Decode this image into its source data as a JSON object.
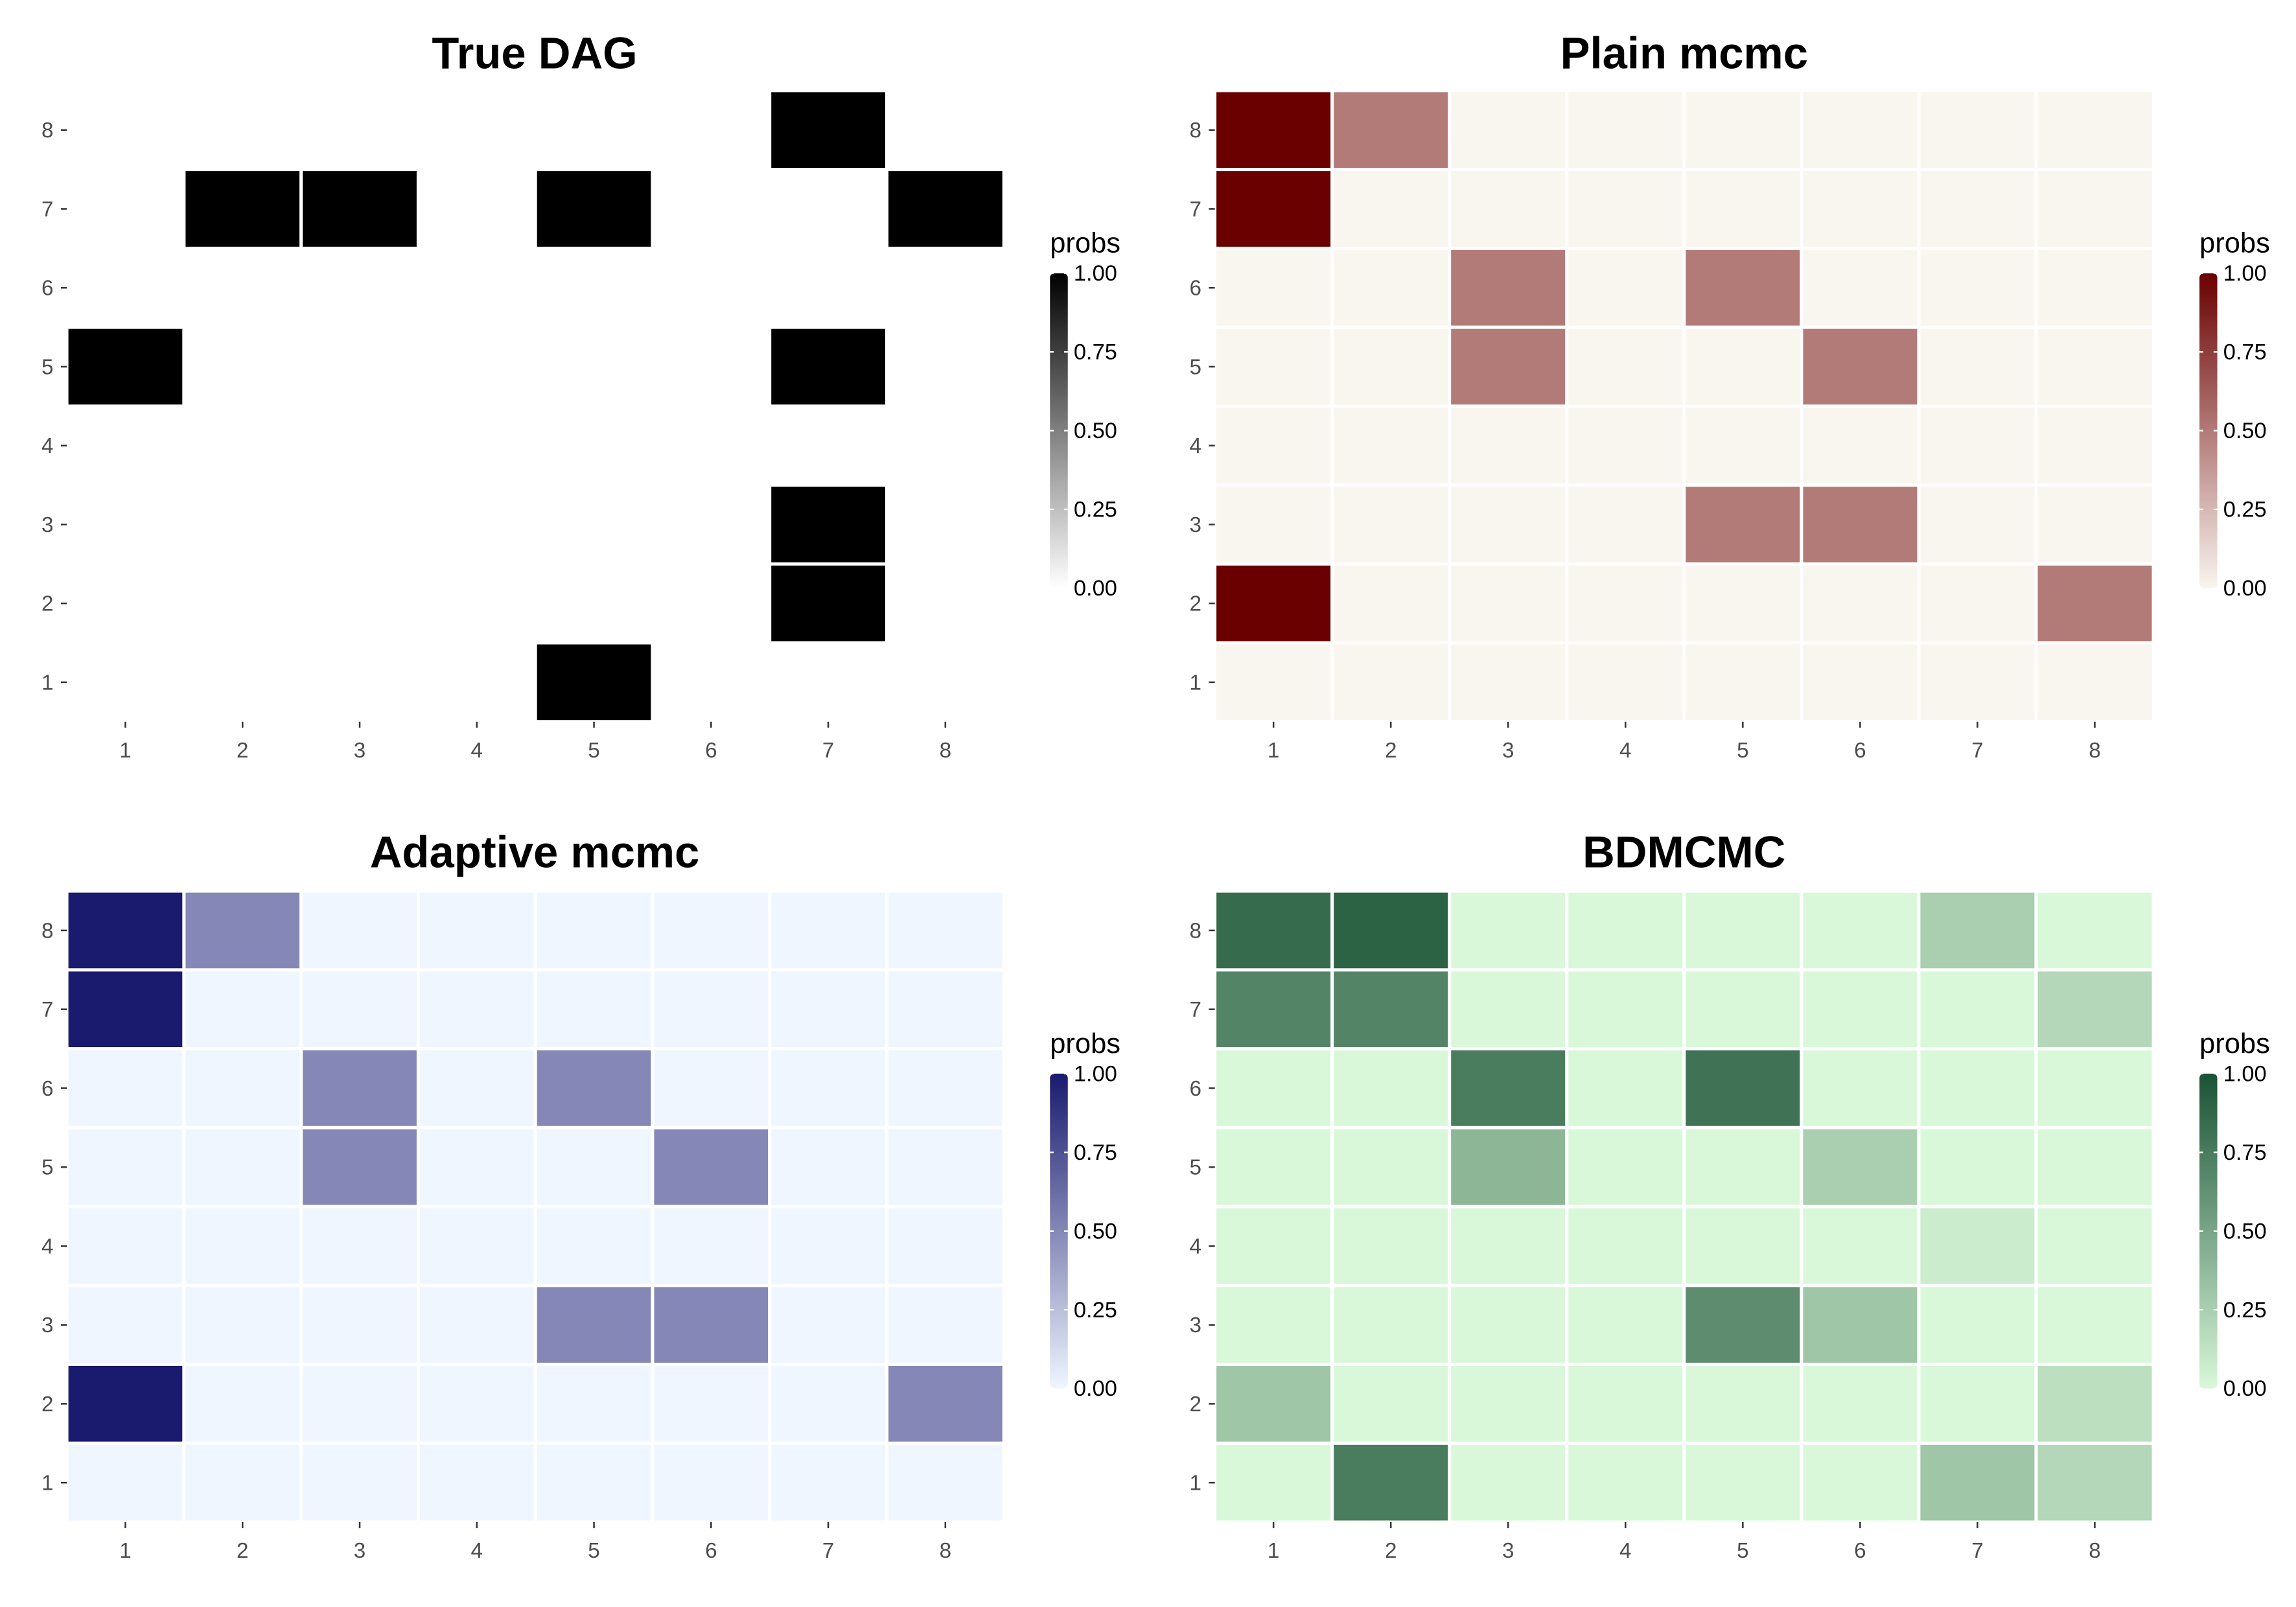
{
  "chart_data": [
    {
      "type": "heatmap",
      "title": "True DAG",
      "x_categories": [
        "1",
        "2",
        "3",
        "4",
        "5",
        "6",
        "7",
        "8"
      ],
      "y_categories": [
        "1",
        "2",
        "3",
        "4",
        "5",
        "6",
        "7",
        "8"
      ],
      "cells": [
        {
          "x": "5",
          "y": "1",
          "value": 1.0
        },
        {
          "x": "7",
          "y": "2",
          "value": 1.0
        },
        {
          "x": "7",
          "y": "3",
          "value": 1.0
        },
        {
          "x": "1",
          "y": "5",
          "value": 1.0
        },
        {
          "x": "7",
          "y": "5",
          "value": 1.0
        },
        {
          "x": "2",
          "y": "7",
          "value": 1.0
        },
        {
          "x": "3",
          "y": "7",
          "value": 1.0
        },
        {
          "x": "5",
          "y": "7",
          "value": 1.0
        },
        {
          "x": "8",
          "y": "7",
          "value": 1.0
        },
        {
          "x": "7",
          "y": "8",
          "value": 1.0
        }
      ],
      "default_value": 0.0,
      "show_background_cells": false,
      "low_color": "#ffffff",
      "high_color": "#000000",
      "legend": {
        "title": "probs",
        "labels": [
          "0.00",
          "0.25",
          "0.50",
          "0.75",
          "1.00"
        ],
        "position": "right"
      }
    },
    {
      "type": "heatmap",
      "title": "Plain mcmc",
      "x_categories": [
        "1",
        "2",
        "3",
        "4",
        "5",
        "6",
        "7",
        "8"
      ],
      "y_categories": [
        "1",
        "2",
        "3",
        "4",
        "5",
        "6",
        "7",
        "8"
      ],
      "cells": [
        {
          "x": "1",
          "y": "2",
          "value": 1.0
        },
        {
          "x": "8",
          "y": "2",
          "value": 0.5
        },
        {
          "x": "5",
          "y": "3",
          "value": 0.5
        },
        {
          "x": "6",
          "y": "3",
          "value": 0.5
        },
        {
          "x": "3",
          "y": "5",
          "value": 0.5
        },
        {
          "x": "6",
          "y": "5",
          "value": 0.5
        },
        {
          "x": "3",
          "y": "6",
          "value": 0.5
        },
        {
          "x": "5",
          "y": "6",
          "value": 0.5
        },
        {
          "x": "1",
          "y": "7",
          "value": 1.0
        },
        {
          "x": "1",
          "y": "8",
          "value": 1.0
        },
        {
          "x": "2",
          "y": "8",
          "value": 0.5
        }
      ],
      "default_value": 0.0,
      "show_background_cells": true,
      "low_color": "#f9f5ef",
      "high_color": "#6a0000",
      "legend": {
        "title": "probs",
        "labels": [
          "0.00",
          "0.25",
          "0.50",
          "0.75",
          "1.00"
        ],
        "position": "right"
      }
    },
    {
      "type": "heatmap",
      "title": "Adaptive mcmc",
      "x_categories": [
        "1",
        "2",
        "3",
        "4",
        "5",
        "6",
        "7",
        "8"
      ],
      "y_categories": [
        "1",
        "2",
        "3",
        "4",
        "5",
        "6",
        "7",
        "8"
      ],
      "cells": [
        {
          "x": "1",
          "y": "2",
          "value": 1.0
        },
        {
          "x": "8",
          "y": "2",
          "value": 0.5
        },
        {
          "x": "5",
          "y": "3",
          "value": 0.5
        },
        {
          "x": "6",
          "y": "3",
          "value": 0.5
        },
        {
          "x": "3",
          "y": "5",
          "value": 0.5
        },
        {
          "x": "6",
          "y": "5",
          "value": 0.5
        },
        {
          "x": "3",
          "y": "6",
          "value": 0.5
        },
        {
          "x": "5",
          "y": "6",
          "value": 0.5
        },
        {
          "x": "1",
          "y": "7",
          "value": 1.0
        },
        {
          "x": "1",
          "y": "8",
          "value": 1.0
        },
        {
          "x": "2",
          "y": "8",
          "value": 0.5
        }
      ],
      "default_value": 0.0,
      "show_background_cells": true,
      "low_color": "#eff6ff",
      "high_color": "#1a1a6e",
      "legend": {
        "title": "probs",
        "labels": [
          "0.00",
          "0.25",
          "0.50",
          "0.75",
          "1.00"
        ],
        "position": "right"
      }
    },
    {
      "type": "heatmap",
      "title": "BDMCMC",
      "x_categories": [
        "1",
        "2",
        "3",
        "4",
        "5",
        "6",
        "7",
        "8"
      ],
      "y_categories": [
        "1",
        "2",
        "3",
        "4",
        "5",
        "6",
        "7",
        "8"
      ],
      "cells": [
        {
          "x": "2",
          "y": "1",
          "value": 0.75
        },
        {
          "x": "7",
          "y": "1",
          "value": 0.3
        },
        {
          "x": "8",
          "y": "1",
          "value": 0.2
        },
        {
          "x": "1",
          "y": "2",
          "value": 0.3
        },
        {
          "x": "8",
          "y": "2",
          "value": 0.15
        },
        {
          "x": "5",
          "y": "3",
          "value": 0.65
        },
        {
          "x": "6",
          "y": "3",
          "value": 0.3
        },
        {
          "x": "7",
          "y": "4",
          "value": 0.07
        },
        {
          "x": "3",
          "y": "5",
          "value": 0.4
        },
        {
          "x": "6",
          "y": "5",
          "value": 0.25
        },
        {
          "x": "3",
          "y": "6",
          "value": 0.75
        },
        {
          "x": "5",
          "y": "6",
          "value": 0.8
        },
        {
          "x": "1",
          "y": "7",
          "value": 0.7
        },
        {
          "x": "2",
          "y": "7",
          "value": 0.7
        },
        {
          "x": "8",
          "y": "7",
          "value": 0.2
        },
        {
          "x": "1",
          "y": "8",
          "value": 0.85
        },
        {
          "x": "2",
          "y": "8",
          "value": 0.9
        },
        {
          "x": "7",
          "y": "8",
          "value": 0.25
        }
      ],
      "default_value": 0.0,
      "show_background_cells": true,
      "low_color": "#d9f8d9",
      "high_color": "#1a5235",
      "legend": {
        "title": "probs",
        "labels": [
          "0.00",
          "0.25",
          "0.50",
          "0.75",
          "1.00"
        ],
        "position": "right"
      }
    }
  ]
}
